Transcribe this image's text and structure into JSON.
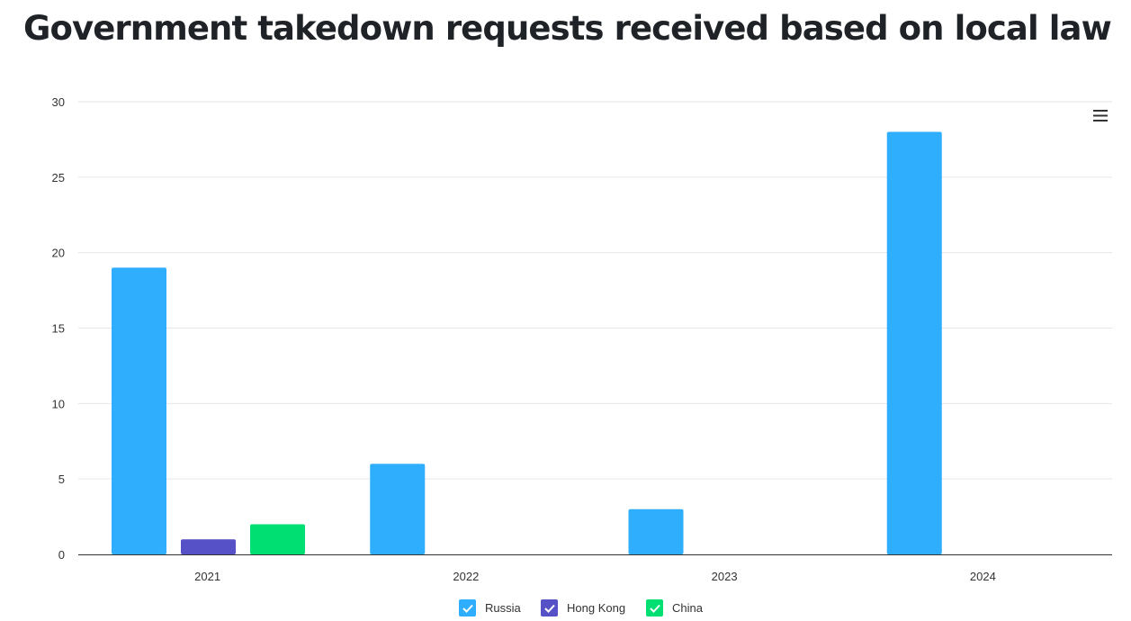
{
  "header": {
    "title": "Government takedown requests received based on local law"
  },
  "toolbar": {
    "menu_icon": "hamburger-menu-icon"
  },
  "colors": {
    "russia": "#2eaefc",
    "hong_kong": "#5651c6",
    "china": "#00e072",
    "grid": "#e6e6e6",
    "axis": "#333333"
  },
  "chart_data": {
    "type": "bar",
    "title": "Government takedown requests received based on local law",
    "xlabel": "",
    "ylabel": "",
    "categories": [
      "2021",
      "2022",
      "2023",
      "2024"
    ],
    "series": [
      {
        "name": "Russia",
        "values": [
          19,
          6,
          3,
          28
        ],
        "color": "#2eaefc"
      },
      {
        "name": "Hong Kong",
        "values": [
          1,
          0,
          0,
          0
        ],
        "color": "#5651c6"
      },
      {
        "name": "China",
        "values": [
          2,
          0,
          0,
          0
        ],
        "color": "#00e072"
      }
    ],
    "ylim": [
      0,
      30
    ],
    "yticks": [
      "0",
      "5",
      "10",
      "15",
      "20",
      "25",
      "30"
    ],
    "grid": true,
    "legend": "bottom-center"
  }
}
